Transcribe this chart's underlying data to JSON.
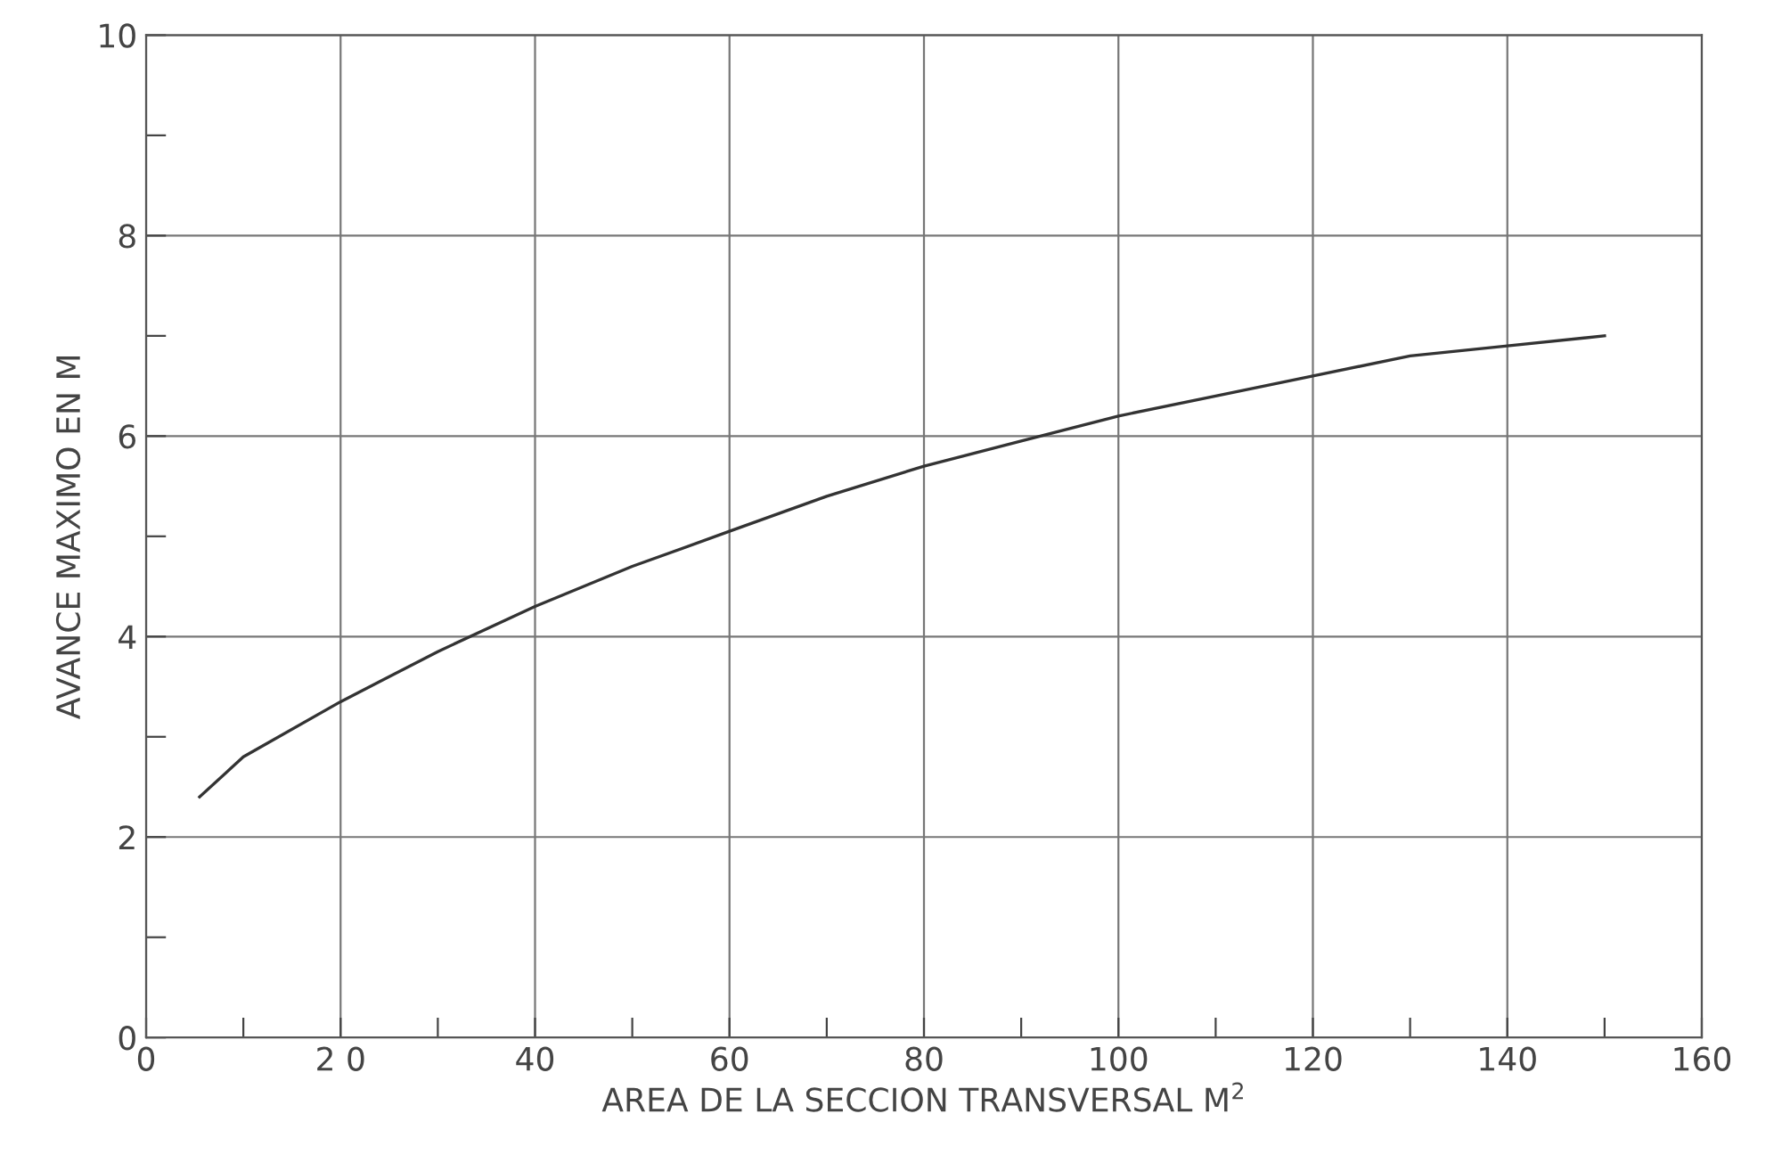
{
  "chart_data": {
    "type": "line",
    "xlabel": "AREA DE LA SECCION TRANSVERSAL M$^{2}$",
    "ylabel": "AVANCE MAXIMO EN M",
    "x": [
      5.5,
      10,
      20,
      30,
      40,
      50,
      60,
      70,
      80,
      90,
      100,
      110,
      120,
      130,
      140,
      150
    ],
    "series": [
      {
        "color": "#333333",
        "values": [
          2.4,
          2.8,
          3.35,
          3.85,
          4.3,
          4.7,
          5.05,
          5.4,
          5.7,
          5.95,
          6.2,
          6.4,
          6.6,
          6.8,
          6.9,
          7.0
        ]
      }
    ],
    "xlim": [
      0,
      160
    ],
    "ylim": [
      0,
      10
    ],
    "xticks": [
      0,
      {
        "value": 10,
        "label": null
      },
      {
        "value": 20,
        "label": "2 0"
      },
      {
        "value": 30,
        "label": null
      },
      40,
      {
        "value": 50,
        "label": null
      },
      60,
      {
        "value": 70,
        "label": null
      },
      80,
      {
        "value": 90,
        "label": null
      },
      100,
      {
        "value": 110,
        "label": null
      },
      120,
      {
        "value": 130,
        "label": null
      },
      140,
      {
        "value": 150,
        "label": null
      },
      160
    ],
    "yticks": [
      0,
      {
        "value": 1,
        "label": null
      },
      2,
      {
        "value": 3,
        "label": null
      },
      4,
      {
        "value": 5,
        "label": null
      },
      6,
      {
        "value": 7,
        "label": null
      },
      8,
      {
        "value": 9,
        "label": null
      },
      10
    ],
    "grid": true,
    "marker": "none",
    "line_style": "solid"
  }
}
